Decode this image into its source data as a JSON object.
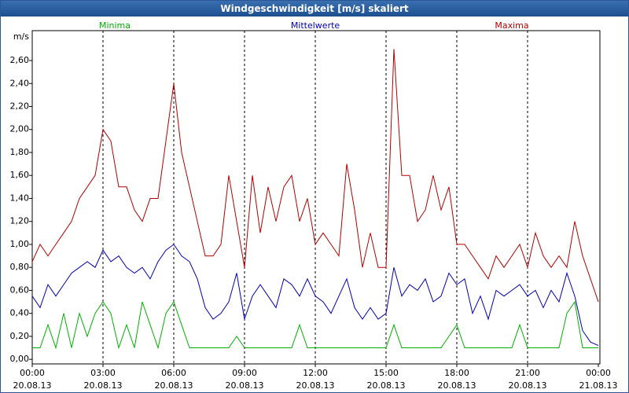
{
  "chart_data": {
    "type": "line",
    "title": "Windgeschwindigkeit [m/s] skaliert",
    "y_label": "m/s",
    "x": [
      0,
      20,
      40,
      60,
      80,
      100,
      120,
      140,
      160,
      180,
      200,
      220,
      240,
      260,
      280,
      300,
      320,
      340,
      360,
      380,
      400,
      420,
      440,
      460,
      480,
      500,
      520,
      540,
      560,
      580,
      600,
      620,
      640,
      660,
      680,
      700,
      720,
      740,
      760,
      780,
      800,
      820,
      840,
      860,
      880,
      900,
      920,
      940,
      960,
      980,
      1000,
      1020,
      1040,
      1060,
      1080,
      1100,
      1120,
      1140,
      1160,
      1180,
      1200,
      1220,
      1240,
      1260,
      1280,
      1300,
      1320,
      1340,
      1360,
      1380,
      1400,
      1420,
      1440
    ],
    "xlim": [
      0,
      1440
    ],
    "xticks": [
      {
        "value": 0,
        "label": "00:00",
        "date": "20.08.13"
      },
      {
        "value": 180,
        "label": "03:00",
        "date": "20.08.13"
      },
      {
        "value": 360,
        "label": "06:00",
        "date": "20.08.13"
      },
      {
        "value": 540,
        "label": "09:00",
        "date": "20.08.13"
      },
      {
        "value": 720,
        "label": "12:00",
        "date": "20.08.13"
      },
      {
        "value": 900,
        "label": "15:00",
        "date": "20.08.13"
      },
      {
        "value": 1080,
        "label": "18:00",
        "date": "20.08.13"
      },
      {
        "value": 1260,
        "label": "21:00",
        "date": "20.08.13"
      },
      {
        "value": 1440,
        "label": "00:00",
        "date": "21.08.13"
      }
    ],
    "ylim": [
      -0.04,
      2.86
    ],
    "yticks": [
      {
        "value": 0,
        "label": "0,00"
      },
      {
        "value": 0.2,
        "label": "0,20"
      },
      {
        "value": 0.4,
        "label": "0,40"
      },
      {
        "value": 0.6,
        "label": "0,60"
      },
      {
        "value": 0.8,
        "label": "0,80"
      },
      {
        "value": 1.0,
        "label": "1,00"
      },
      {
        "value": 1.2,
        "label": "1,20"
      },
      {
        "value": 1.4,
        "label": "1,40"
      },
      {
        "value": 1.6,
        "label": "1,60"
      },
      {
        "value": 1.8,
        "label": "1,80"
      },
      {
        "value": 2.0,
        "label": "2,00"
      },
      {
        "value": 2.2,
        "label": "2,20"
      },
      {
        "value": 2.4,
        "label": "2,40"
      },
      {
        "value": 2.6,
        "label": "2,60"
      }
    ],
    "grid": "x",
    "series": [
      {
        "name": "Minima",
        "color": "#00b000",
        "values": [
          0.1,
          0.1,
          0.3,
          0.1,
          0.4,
          0.1,
          0.4,
          0.2,
          0.4,
          0.5,
          0.4,
          0.1,
          0.3,
          0.1,
          0.5,
          0.3,
          0.1,
          0.4,
          0.5,
          0.3,
          0.1,
          0.1,
          0.1,
          0.1,
          0.1,
          0.1,
          0.2,
          0.1,
          0.1,
          0.1,
          0.1,
          0.1,
          0.1,
          0.1,
          0.3,
          0.1,
          0.1,
          0.1,
          0.1,
          0.1,
          0.1,
          0.1,
          0.1,
          0.1,
          0.1,
          0.1,
          0.3,
          0.1,
          0.1,
          0.1,
          0.1,
          0.1,
          0.1,
          0.2,
          0.3,
          0.1,
          0.1,
          0.1,
          0.1,
          0.1,
          0.1,
          0.1,
          0.3,
          0.1,
          0.1,
          0.1,
          0.1,
          0.1,
          0.4,
          0.5,
          0.1,
          0.1,
          0.1
        ]
      },
      {
        "name": "Mittelwerte",
        "color": "#0000b0",
        "values": [
          0.55,
          0.45,
          0.65,
          0.55,
          0.65,
          0.75,
          0.8,
          0.85,
          0.8,
          0.95,
          0.85,
          0.9,
          0.8,
          0.75,
          0.8,
          0.7,
          0.85,
          0.95,
          1.0,
          0.9,
          0.85,
          0.7,
          0.45,
          0.35,
          0.4,
          0.5,
          0.75,
          0.35,
          0.55,
          0.65,
          0.55,
          0.45,
          0.7,
          0.65,
          0.55,
          0.7,
          0.55,
          0.5,
          0.4,
          0.55,
          0.7,
          0.45,
          0.35,
          0.45,
          0.35,
          0.4,
          0.8,
          0.55,
          0.65,
          0.6,
          0.7,
          0.5,
          0.55,
          0.75,
          0.65,
          0.7,
          0.4,
          0.55,
          0.35,
          0.6,
          0.55,
          0.6,
          0.65,
          0.55,
          0.6,
          0.45,
          0.6,
          0.5,
          0.75,
          0.55,
          0.25,
          0.15,
          0.12
        ]
      },
      {
        "name": "Maxima",
        "color": "#b00000",
        "values": [
          0.85,
          1.0,
          0.9,
          1.0,
          1.1,
          1.2,
          1.4,
          1.5,
          1.6,
          2.0,
          1.9,
          1.5,
          1.5,
          1.3,
          1.2,
          1.4,
          1.4,
          1.9,
          2.4,
          1.8,
          1.5,
          1.2,
          0.9,
          0.9,
          1.0,
          1.6,
          1.2,
          0.8,
          1.6,
          1.1,
          1.5,
          1.2,
          1.5,
          1.6,
          1.2,
          1.4,
          1.0,
          1.1,
          1.0,
          0.9,
          1.7,
          1.3,
          0.8,
          1.1,
          0.8,
          0.8,
          2.7,
          1.6,
          1.6,
          1.2,
          1.3,
          1.6,
          1.3,
          1.5,
          1.0,
          1.0,
          0.9,
          0.8,
          0.7,
          0.9,
          0.8,
          0.9,
          1.0,
          0.8,
          1.1,
          0.9,
          0.8,
          0.9,
          0.8,
          1.2,
          0.9,
          0.7,
          0.5
        ]
      }
    ]
  }
}
